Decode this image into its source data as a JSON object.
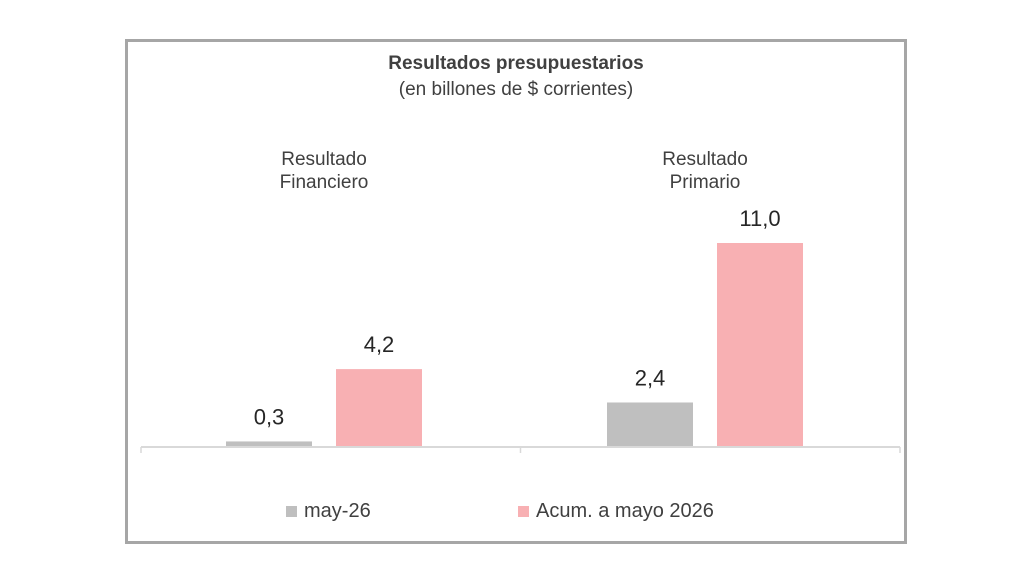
{
  "chart_data": {
    "type": "bar",
    "title": "Resultados presupuestarios",
    "subtitle": "(en billones de $ corrientes)",
    "categories": [
      [
        "Resultado",
        "Financiero"
      ],
      [
        "Resultado",
        "Primario"
      ]
    ],
    "series": [
      {
        "name": "may-26",
        "values": [
          0.3,
          2.4
        ],
        "labels": [
          "0,3",
          "2,4"
        ],
        "color": "#bfbfbf"
      },
      {
        "name": "Acum. a mayo 2026",
        "values": [
          4.2,
          11.0
        ],
        "labels": [
          "4,2",
          "11,0"
        ],
        "color": "#f8b0b3"
      }
    ],
    "ylim": [
      0,
      11.0
    ],
    "grid": false,
    "legend_position": "bottom",
    "axis_color": "#d9d9d9"
  }
}
